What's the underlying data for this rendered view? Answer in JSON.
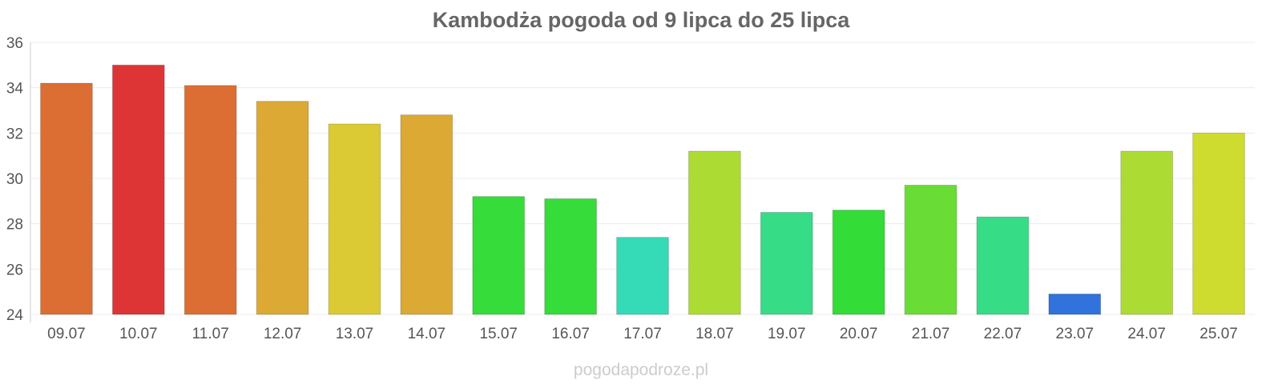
{
  "chart_data": {
    "type": "bar",
    "title": "Kambodża pogoda od 9 lipca do 25 lipca",
    "xlabel": "",
    "ylabel": "",
    "ylim": [
      24,
      36
    ],
    "yticks": [
      "24",
      "26",
      "28",
      "30",
      "32",
      "34",
      "36"
    ],
    "grid": true,
    "legend": "none",
    "categories": [
      "09.07",
      "10.07",
      "11.07",
      "12.07",
      "13.07",
      "14.07",
      "15.07",
      "16.07",
      "17.07",
      "18.07",
      "19.07",
      "20.07",
      "21.07",
      "22.07",
      "23.07",
      "24.07",
      "25.07"
    ],
    "values": [
      34.2,
      35.0,
      34.1,
      33.4,
      32.4,
      32.8,
      29.2,
      29.1,
      27.4,
      31.2,
      28.5,
      28.6,
      29.7,
      28.3,
      24.9,
      31.2,
      32.0
    ],
    "colors": [
      "#dd6e33",
      "#dd3535",
      "#dd6e33",
      "#dca934",
      "#dbca33",
      "#dca934",
      "#36dc3a",
      "#36dc3a",
      "#35dbb6",
      "#acdc33",
      "#37dc86",
      "#33dc36",
      "#69dc36",
      "#37dc86",
      "#3172dc",
      "#acdc33",
      "#cedc30"
    ]
  },
  "watermark": "pogodapodroze.pl"
}
